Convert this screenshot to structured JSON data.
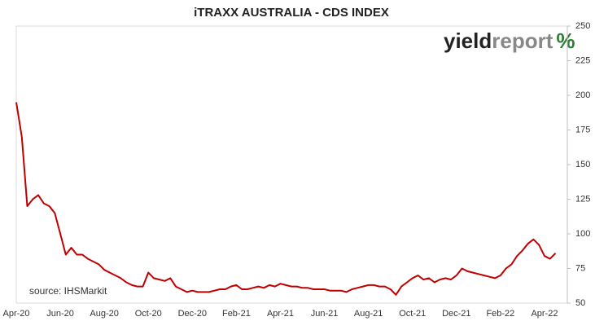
{
  "chart_data": {
    "type": "line",
    "title": "iTRAXX AUSTRALIA - CDS INDEX",
    "source": "source: IHSMarkit",
    "logo": {
      "part1": "yield",
      "part2": "report",
      "part3": "%"
    },
    "categories": [
      "Apr-20",
      null,
      null,
      null,
      null,
      null,
      null,
      null,
      "Jun-20",
      null,
      null,
      null,
      null,
      null,
      null,
      null,
      "Aug-20",
      null,
      null,
      null,
      null,
      null,
      null,
      null,
      "Oct-20",
      null,
      null,
      null,
      null,
      null,
      null,
      null,
      "Dec-20",
      null,
      null,
      null,
      null,
      null,
      null,
      null,
      "Feb-21",
      null,
      null,
      null,
      null,
      null,
      null,
      null,
      "Apr-21",
      null,
      null,
      null,
      null,
      null,
      null,
      null,
      "Jun-21",
      null,
      null,
      null,
      null,
      null,
      null,
      null,
      "Aug-21",
      null,
      null,
      null,
      null,
      null,
      null,
      null,
      "Oct-21",
      null,
      null,
      null,
      null,
      null,
      null,
      null,
      "Dec-21",
      null,
      null,
      null,
      null,
      null,
      null,
      null,
      "Feb-22",
      null,
      null,
      null,
      null,
      null,
      null,
      null,
      "Apr-22",
      null,
      null
    ],
    "values": [
      195,
      170,
      120,
      125,
      128,
      122,
      120,
      115,
      100,
      85,
      90,
      85,
      85,
      82,
      80,
      78,
      74,
      72,
      70,
      68,
      65,
      63,
      62,
      62,
      72,
      68,
      67,
      66,
      68,
      62,
      60,
      58,
      59,
      58,
      58,
      58,
      59,
      60,
      60,
      62,
      63,
      60,
      60,
      61,
      62,
      61,
      63,
      62,
      64,
      63,
      62,
      62,
      61,
      61,
      60,
      60,
      60,
      59,
      59,
      59,
      58,
      60,
      61,
      62,
      63,
      63,
      62,
      62,
      60,
      56,
      62,
      65,
      68,
      70,
      67,
      68,
      65,
      67,
      68,
      67,
      70,
      75,
      73,
      72,
      71,
      70,
      69,
      68,
      70,
      75,
      78,
      84,
      88,
      93,
      96,
      92,
      84,
      82,
      86
    ],
    "color": "#c00000",
    "ylim": [
      50,
      250
    ],
    "yticks": [
      50,
      75,
      100,
      125,
      150,
      175,
      200,
      225,
      250
    ],
    "y_axis_side": "right",
    "grid": false
  }
}
